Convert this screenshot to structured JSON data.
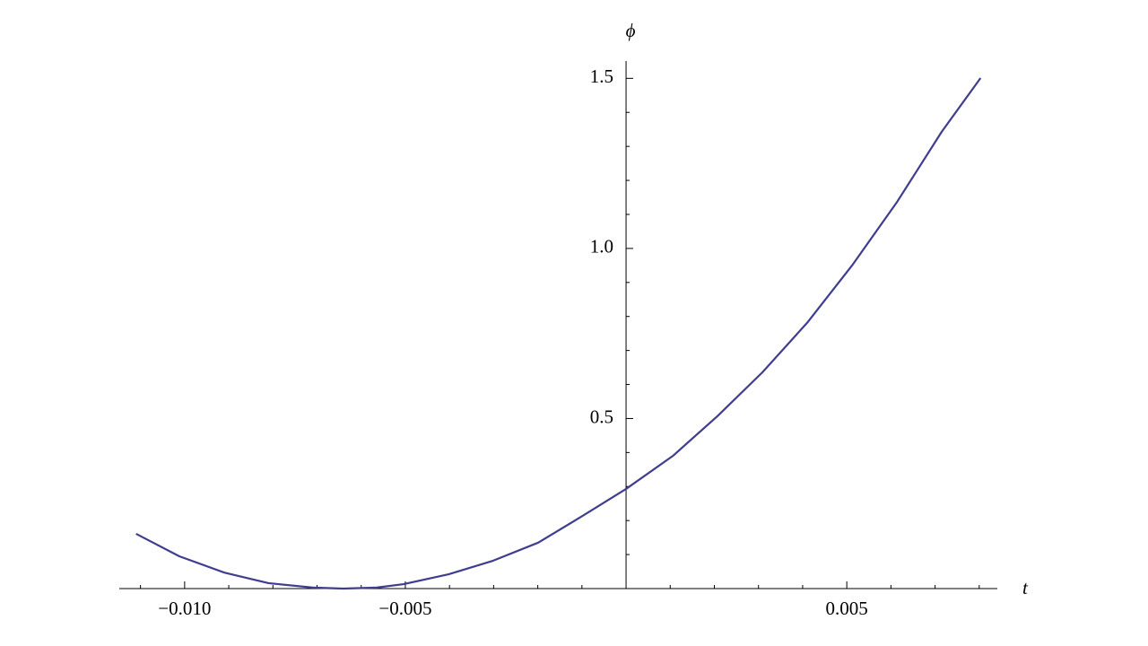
{
  "chart_data": {
    "type": "line",
    "x_label": "t",
    "y_label": "ϕ",
    "x": [
      -0.0111,
      -0.01012,
      -0.0091,
      -0.0081,
      -0.0071,
      -0.0064,
      -0.00565,
      -0.00504,
      -0.00402,
      -0.00301,
      -0.00199,
      -0.00098,
      0,
      0.00106,
      0.00207,
      0.00309,
      0.0041,
      0.00512,
      0.00614,
      0.00715,
      0.00803
    ],
    "series": [
      {
        "color": "#3f3d8f",
        "values": [
          0.161,
          0.095,
          0.047,
          0.016,
          0.003,
          0,
          0.003,
          0.013,
          0.042,
          0.082,
          0.135,
          0.214,
          0.293,
          0.39,
          0.507,
          0.636,
          0.781,
          0.95,
          1.137,
          1.343,
          1.501
        ]
      }
    ],
    "xlim": [
      -0.01148,
      0.00841
    ],
    "ylim": [
      0,
      1.551
    ],
    "xticks": [
      {
        "value": -0.01,
        "label": "−0.010"
      },
      {
        "value": -0.005,
        "label": "−0.005"
      },
      {
        "value": 0.005,
        "label": "0.005"
      }
    ],
    "yticks": [
      0.5,
      {
        "value": 1.0,
        "label": "1.0"
      },
      1.5
    ],
    "xminorticks": [
      -0.011,
      -0.009,
      -0.008,
      -0.007,
      -0.006,
      -0.004,
      -0.003,
      -0.002,
      -0.001,
      0.001,
      0.002,
      0.003,
      0.004,
      0.006,
      0.007,
      0.008
    ],
    "yminorticks": [
      0.1,
      0.2,
      0.3,
      0.4,
      0.6,
      0.7,
      0.8,
      0.9,
      1.1,
      1.2,
      1.3,
      1.4
    ]
  }
}
